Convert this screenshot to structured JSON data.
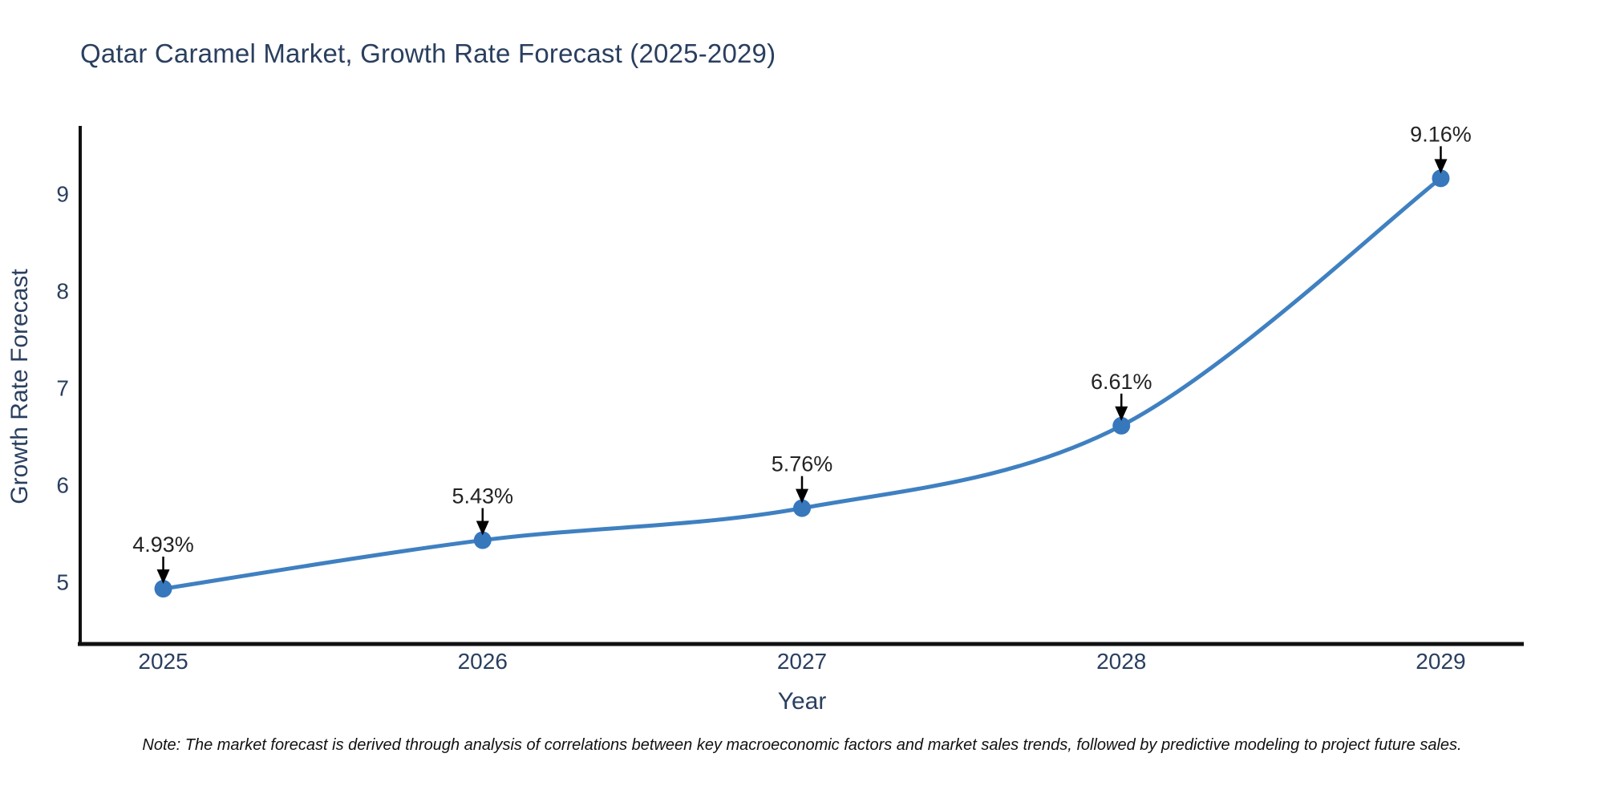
{
  "note": "Note: The market forecast is derived through analysis of correlations between key macroeconomic factors and market sales trends, followed by predictive modeling to project future sales.",
  "chart_data": {
    "type": "line",
    "title": "Qatar Caramel Market, Growth Rate Forecast (2025-2029)",
    "xlabel": "Year",
    "ylabel": "Growth Rate Forecast",
    "x": [
      2025,
      2026,
      2027,
      2028,
      2029
    ],
    "y": [
      4.93,
      5.43,
      5.76,
      6.61,
      9.16
    ],
    "point_labels": [
      "4.93%",
      "5.43%",
      "5.76%",
      "6.61%",
      "9.16%"
    ],
    "x_tick_labels": [
      "2025",
      "2026",
      "2027",
      "2028",
      "2029"
    ],
    "y_ticks": [
      5,
      6,
      7,
      8,
      9
    ],
    "xlim": [
      2024.74,
      2029.26
    ],
    "ylim": [
      4.36,
      9.7
    ],
    "line_shape": "spline",
    "grid": false,
    "legend": "none",
    "colors": {
      "line": "#3f80c1",
      "marker": "#3777bc",
      "axis_line": "#111111",
      "title_text": "#2a3f5f",
      "axis_text": "#2a3f5f",
      "annotation_text": "#222222",
      "arrow": "#000000",
      "note_text": "#111111",
      "background": "#ffffff"
    }
  }
}
